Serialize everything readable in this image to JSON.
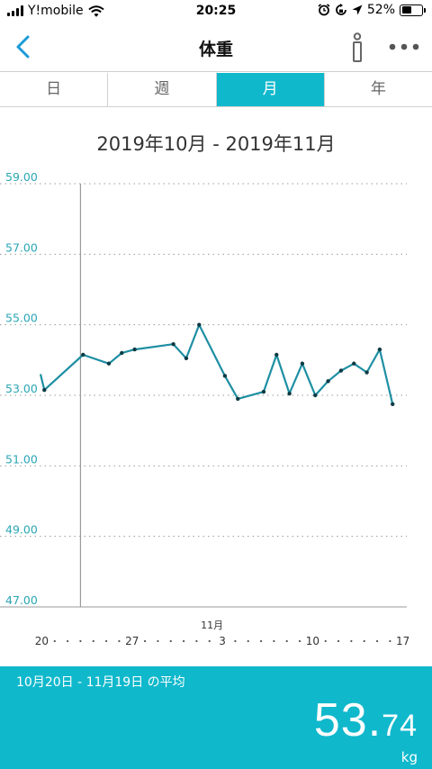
{
  "status_bar": {
    "carrier": "Y!mobile",
    "time": "20:25",
    "battery": "52%",
    "battery_level": 0.52,
    "icons": [
      "signal-icon",
      "wifi-icon",
      "alarm-icon",
      "rotation-lock-icon",
      "location-arrow-icon",
      "battery-icon"
    ]
  },
  "nav": {
    "title": "体重",
    "icons": [
      "chevron-left-icon",
      "info-icon",
      "more-icon"
    ],
    "accent": "#1a9bd7"
  },
  "tabs": [
    {
      "label": "日",
      "active": false
    },
    {
      "label": "週",
      "active": false
    },
    {
      "label": "月",
      "active": true
    },
    {
      "label": "年",
      "active": false
    }
  ],
  "range_title": "2019年10月 - 2019年11月",
  "footer": {
    "period": "10月20日 - 11月19日 の平均",
    "average_int": "53.",
    "average_dec": "74",
    "unit": "kg"
  },
  "colors": {
    "accent": "#10b8cc",
    "line": "#1e8fa3",
    "axis_label": "#2aa6b5"
  },
  "chart_data": {
    "type": "line",
    "ylim": [
      47,
      59
    ],
    "ytick_labels": [
      "59.00",
      "57.00",
      "55.00",
      "53.00",
      "51.00",
      "49.00",
      "47.00"
    ],
    "yticks": [
      59,
      57,
      55,
      53,
      51,
      49,
      47
    ],
    "xlim": [
      19.9,
      48.3
    ],
    "xtick_labels": [
      {
        "x": 20,
        "label": "20"
      },
      {
        "x": 27,
        "label": "27"
      },
      {
        "x": 34,
        "label": "3"
      },
      {
        "x": 41,
        "label": "10"
      },
      {
        "x": 48,
        "label": "17"
      }
    ],
    "month_label": {
      "x": 33.2,
      "label": "11月"
    },
    "month_divider_x": 23,
    "grid": true,
    "series": [
      {
        "points": [
          {
            "x": 19.9,
            "y": 53.6,
            "marker": false
          },
          {
            "x": 20.2,
            "y": 53.15
          },
          {
            "x": 23.2,
            "y": 54.15
          },
          {
            "x": 25.2,
            "y": 53.9
          },
          {
            "x": 26.2,
            "y": 54.2
          },
          {
            "x": 27.2,
            "y": 54.3
          },
          {
            "x": 30.2,
            "y": 54.45
          },
          {
            "x": 31.2,
            "y": 54.05
          },
          {
            "x": 32.2,
            "y": 55.0
          },
          {
            "x": 34.2,
            "y": 53.55
          },
          {
            "x": 35.2,
            "y": 52.9
          },
          {
            "x": 37.2,
            "y": 53.1
          },
          {
            "x": 38.2,
            "y": 54.15
          },
          {
            "x": 39.2,
            "y": 53.05
          },
          {
            "x": 40.2,
            "y": 53.9
          },
          {
            "x": 41.2,
            "y": 53.0
          },
          {
            "x": 42.2,
            "y": 53.4
          },
          {
            "x": 43.2,
            "y": 53.7
          },
          {
            "x": 44.2,
            "y": 53.9
          },
          {
            "x": 45.2,
            "y": 53.65
          },
          {
            "x": 46.2,
            "y": 54.3
          },
          {
            "x": 47.2,
            "y": 52.75
          }
        ]
      }
    ]
  }
}
